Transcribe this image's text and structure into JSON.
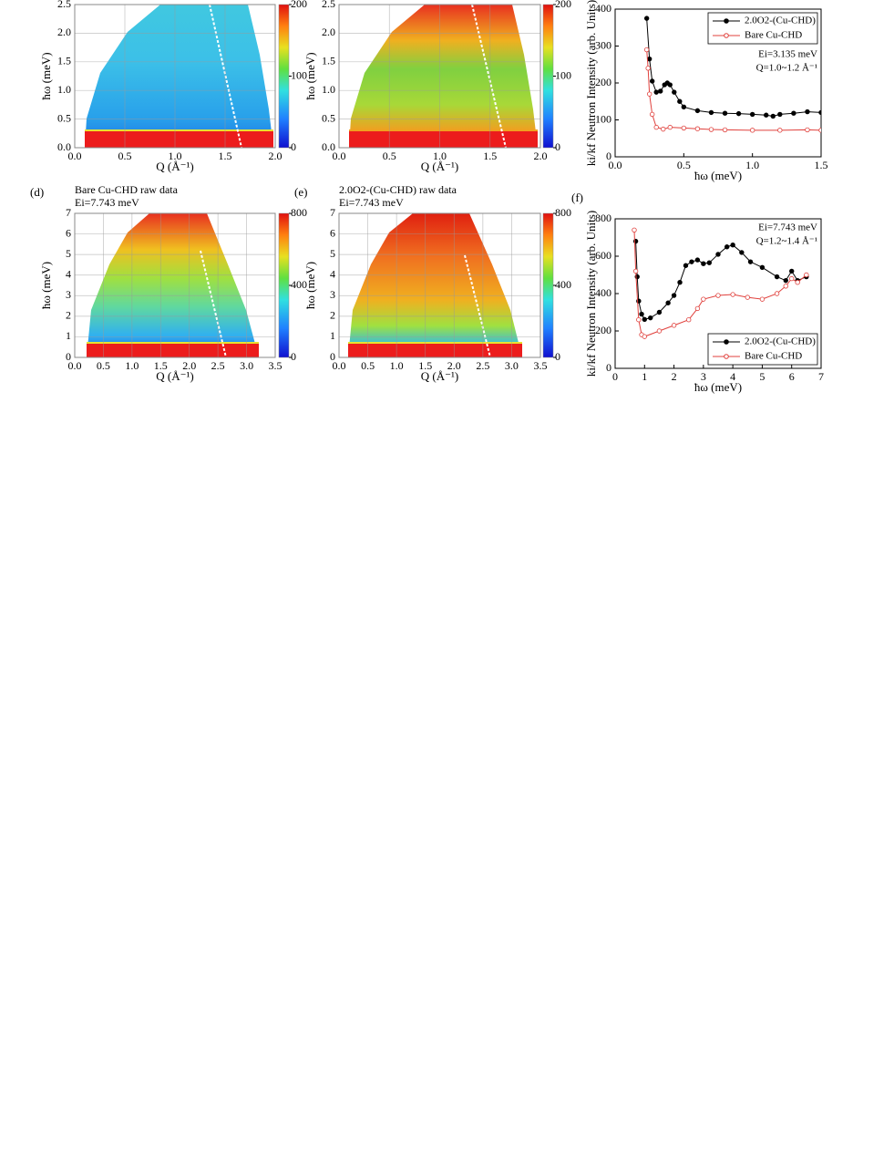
{
  "chart_data": [
    {
      "type": "heatmap",
      "xlabel": "Q (Å⁻¹)",
      "ylabel": "ħω (meV)",
      "xlim": [
        0,
        2
      ],
      "xticks": [
        {
          "value": 0,
          "label": "0.0"
        },
        0.5,
        {
          "value": 1,
          "label": "1.0"
        },
        1.5,
        {
          "value": 2,
          "label": "2.0"
        }
      ],
      "ylim": [
        0,
        2.5
      ],
      "yticks": [
        {
          "value": 0,
          "label": "0.0"
        },
        0.5,
        {
          "value": 1,
          "label": "1.0"
        },
        1.5,
        {
          "value": 2,
          "label": "2.0"
        },
        2.5
      ],
      "clim": [
        0,
        200
      ],
      "cticks": [
        0,
        100,
        200
      ],
      "grid": true
    },
    {
      "type": "heatmap",
      "xlabel": "Q (Å⁻¹)",
      "ylabel": "ħω (meV)",
      "xlim": [
        0,
        2
      ],
      "xticks": [
        {
          "value": 0,
          "label": "0.0"
        },
        0.5,
        {
          "value": 1,
          "label": "1.0"
        },
        1.5,
        {
          "value": 2,
          "label": "2.0"
        }
      ],
      "ylim": [
        0,
        2.5
      ],
      "yticks": [
        {
          "value": 0,
          "label": "0.0"
        },
        0.5,
        {
          "value": 1,
          "label": "1.0"
        },
        1.5,
        {
          "value": 2,
          "label": "2.0"
        },
        2.5
      ],
      "clim": [
        0,
        200
      ],
      "cticks": [
        0,
        100,
        200
      ],
      "grid": true
    },
    {
      "type": "line",
      "xlabel": "ħω (meV)",
      "ylabel": "ki/kf Neutron Intensity (arb. Units)",
      "xlim": [
        0,
        1.5
      ],
      "xticks": [
        {
          "value": 0,
          "label": "0.0"
        },
        0.5,
        {
          "value": 1,
          "label": "1.0"
        },
        1.5
      ],
      "ylim": [
        0,
        400
      ],
      "yticks": [
        0,
        100,
        200,
        300,
        400
      ],
      "legend": "upper right",
      "annotations": [
        "Ei=3.135 meV",
        "Q=1.0~1.2 Å⁻¹"
      ],
      "series": [
        {
          "name": "2.0O2-(Cu-CHD)",
          "color": "#000000",
          "x": [
            0.23,
            0.25,
            0.27,
            0.3,
            0.33,
            0.36,
            0.38,
            0.4,
            0.43,
            0.47,
            0.5,
            0.6,
            0.7,
            0.8,
            0.9,
            1.0,
            1.1,
            1.15,
            1.2,
            1.3,
            1.4,
            1.5
          ],
          "values": [
            375,
            265,
            205,
            175,
            178,
            195,
            200,
            195,
            175,
            150,
            135,
            125,
            120,
            118,
            117,
            115,
            113,
            110,
            115,
            118,
            122,
            120
          ]
        },
        {
          "name": "Bare Cu-CHD",
          "color": "#e0403c",
          "x": [
            0.23,
            0.24,
            0.25,
            0.27,
            0.3,
            0.35,
            0.4,
            0.5,
            0.6,
            0.7,
            0.8,
            1.0,
            1.2,
            1.4,
            1.5
          ],
          "values": [
            290,
            240,
            170,
            115,
            80,
            75,
            80,
            78,
            76,
            74,
            73,
            72,
            72,
            73,
            72
          ]
        }
      ]
    },
    {
      "type": "heatmap",
      "panel_label": "(d)",
      "title": "Bare Cu-CHD raw data",
      "subtitle": "Ei=7.743 meV",
      "xlabel": "Q (Å⁻¹)",
      "ylabel": "ħω (meV)",
      "xlim": [
        0,
        3.5
      ],
      "xticks": [
        {
          "value": 0,
          "label": "0.0"
        },
        0.5,
        {
          "value": 1,
          "label": "1.0"
        },
        1.5,
        {
          "value": 2,
          "label": "2.0"
        },
        2.5,
        {
          "value": 3,
          "label": "3.0"
        },
        3.5
      ],
      "ylim": [
        0,
        7
      ],
      "yticks": [
        0,
        1,
        2,
        3,
        4,
        5,
        6,
        7
      ],
      "clim": [
        0,
        800
      ],
      "cticks": [
        0,
        400,
        800
      ],
      "grid": true
    },
    {
      "type": "heatmap",
      "panel_label": "(e)",
      "title": "2.0O2-(Cu-CHD) raw data",
      "subtitle": "Ei=7.743 meV",
      "xlabel": "Q (Å⁻¹)",
      "ylabel": "ħω (meV)",
      "xlim": [
        0,
        3.5
      ],
      "xticks": [
        {
          "value": 0,
          "label": "0.0"
        },
        0.5,
        {
          "value": 1,
          "label": "1.0"
        },
        1.5,
        {
          "value": 2,
          "label": "2.0"
        },
        2.5,
        {
          "value": 3,
          "label": "3.0"
        },
        3.5
      ],
      "ylim": [
        0,
        7
      ],
      "yticks": [
        0,
        1,
        2,
        3,
        4,
        5,
        6,
        7
      ],
      "clim": [
        0,
        800
      ],
      "cticks": [
        0,
        400,
        800
      ],
      "grid": true
    },
    {
      "type": "line",
      "panel_label": "(f)",
      "xlabel": "ħω (meV)",
      "ylabel": "ki/kf Neutron Intensity (arb. Units)",
      "xlim": [
        0,
        7
      ],
      "xticks": [
        0,
        1,
        2,
        3,
        4,
        5,
        6,
        7
      ],
      "ylim": [
        0,
        800
      ],
      "yticks": [
        0,
        200,
        400,
        600,
        800
      ],
      "legend": "lower right",
      "annotations": [
        "Ei=7.743 meV",
        "Q=1.2~1.4 Å⁻¹"
      ],
      "series": [
        {
          "name": "2.0O2-(Cu-CHD)",
          "color": "#000000",
          "x": [
            0.7,
            0.75,
            0.8,
            0.9,
            1.0,
            1.2,
            1.5,
            1.8,
            2.0,
            2.2,
            2.4,
            2.6,
            2.8,
            3.0,
            3.2,
            3.5,
            3.8,
            4.0,
            4.3,
            4.6,
            5.0,
            5.5,
            5.8,
            6.0,
            6.2,
            6.5
          ],
          "values": [
            680,
            490,
            360,
            290,
            262,
            270,
            300,
            350,
            390,
            460,
            550,
            570,
            580,
            560,
            565,
            610,
            650,
            660,
            620,
            570,
            540,
            490,
            470,
            520,
            470,
            490
          ]
        },
        {
          "name": "Bare Cu-CHD",
          "color": "#e0403c",
          "x": [
            0.65,
            0.7,
            0.8,
            0.9,
            1.0,
            1.5,
            2.0,
            2.5,
            2.8,
            3.0,
            3.5,
            4.0,
            4.5,
            5.0,
            5.5,
            5.8,
            6.0,
            6.2,
            6.5
          ],
          "values": [
            740,
            520,
            260,
            180,
            170,
            200,
            230,
            260,
            320,
            370,
            390,
            395,
            380,
            370,
            400,
            440,
            480,
            460,
            500
          ]
        }
      ]
    }
  ]
}
